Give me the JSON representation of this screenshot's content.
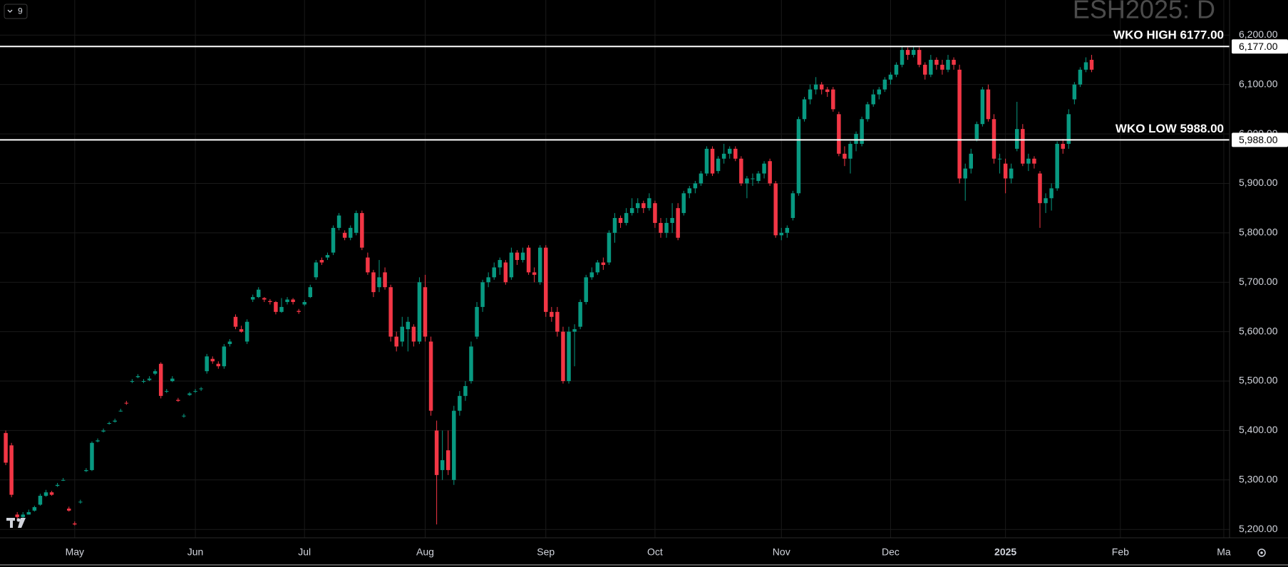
{
  "chart_data": {
    "type": "candlestick",
    "title": "ESH2025: D",
    "indicator_count": "9",
    "up_color": "#089981",
    "down_color": "#f23645",
    "grid": true,
    "ylim": [
      5183,
      6271
    ],
    "yticks": [
      {
        "value": 5200,
        "label": "5,200.00"
      },
      {
        "value": 5300,
        "label": "5,300.00"
      },
      {
        "value": 5400,
        "label": "5,400.00"
      },
      {
        "value": 5500,
        "label": "5,500.00"
      },
      {
        "value": 5600,
        "label": "5,600.00"
      },
      {
        "value": 5700,
        "label": "5,700.00"
      },
      {
        "value": 5800,
        "label": "5,800.00"
      },
      {
        "value": 5900,
        "label": "5,900.00"
      },
      {
        "value": 6000,
        "label": "6,000.00"
      },
      {
        "value": 6100,
        "label": "6,100.00"
      },
      {
        "value": 6200,
        "label": "6,200.00"
      }
    ],
    "xlim": [
      -1,
      213
    ],
    "xticks": [
      {
        "value": 12,
        "label": "May"
      },
      {
        "value": 33,
        "label": "Jun"
      },
      {
        "value": 52,
        "label": "Jul"
      },
      {
        "value": 73,
        "label": "Aug"
      },
      {
        "value": 94,
        "label": "Sep"
      },
      {
        "value": 113,
        "label": "Oct"
      },
      {
        "value": 135,
        "label": "Nov"
      },
      {
        "value": 154,
        "label": "Dec"
      },
      {
        "value": 174,
        "label": "2025"
      },
      {
        "value": 194,
        "label": "Feb"
      },
      {
        "value": 212,
        "label": "Ma"
      }
    ],
    "levels": [
      {
        "text": "WKO HIGH 6177.00",
        "value": 6177,
        "price_label": "6,177.00"
      },
      {
        "text": "WKO LOW 5988.00",
        "value": 5988,
        "price_label": "5,988.00"
      }
    ],
    "ohlc": [
      [
        5395,
        5400,
        5330,
        5335
      ],
      [
        5370,
        5375,
        5265,
        5270
      ],
      [
        5230,
        5235,
        5220,
        5225
      ],
      [
        5225,
        5235,
        5222,
        5230
      ],
      [
        5230,
        5240,
        5230,
        5235
      ],
      [
        5238,
        5248,
        5236,
        5245
      ],
      [
        5250,
        5272,
        5248,
        5268
      ],
      [
        5268,
        5280,
        5266,
        5275
      ],
      [
        5275,
        5278,
        5268,
        5270
      ],
      [
        5288,
        5294,
        5286,
        5290
      ],
      [
        5300,
        5304,
        5298,
        5300
      ],
      [
        5242,
        5246,
        5236,
        5238
      ],
      [
        5212,
        5216,
        5208,
        5210
      ],
      [
        5256,
        5260,
        5252,
        5256
      ],
      [
        5318,
        5324,
        5316,
        5320
      ],
      [
        5320,
        5378,
        5318,
        5375
      ],
      [
        5378,
        5384,
        5376,
        5380
      ],
      [
        5398,
        5404,
        5396,
        5400
      ],
      [
        5414,
        5418,
        5412,
        5415
      ],
      [
        5418,
        5424,
        5416,
        5420
      ],
      [
        5440,
        5444,
        5438,
        5440
      ],
      [
        5456,
        5460,
        5452,
        5455
      ],
      [
        5500,
        5504,
        5496,
        5500
      ],
      [
        5508,
        5514,
        5506,
        5510
      ],
      [
        5500,
        5504,
        5496,
        5500
      ],
      [
        5502,
        5510,
        5500,
        5505
      ],
      [
        5515,
        5524,
        5512,
        5520
      ],
      [
        5535,
        5538,
        5465,
        5470
      ],
      [
        5480,
        5484,
        5476,
        5480
      ],
      [
        5500,
        5510,
        5498,
        5505
      ],
      [
        5462,
        5466,
        5458,
        5460
      ],
      [
        5430,
        5434,
        5426,
        5430
      ],
      [
        5472,
        5478,
        5470,
        5475
      ],
      [
        5480,
        5484,
        5476,
        5480
      ],
      [
        5484,
        5488,
        5480,
        5485
      ],
      [
        5520,
        5555,
        5515,
        5550
      ],
      [
        5545,
        5550,
        5535,
        5540
      ],
      [
        5535,
        5540,
        5525,
        5530
      ],
      [
        5530,
        5575,
        5525,
        5570
      ],
      [
        5575,
        5585,
        5570,
        5580
      ],
      [
        5630,
        5635,
        5605,
        5610
      ],
      [
        5605,
        5612,
        5598,
        5600
      ],
      [
        5580,
        5625,
        5575,
        5620
      ],
      [
        5665,
        5675,
        5660,
        5670
      ],
      [
        5670,
        5690,
        5668,
        5685
      ],
      [
        5668,
        5670,
        5660,
        5665
      ],
      [
        5662,
        5666,
        5655,
        5660
      ],
      [
        5660,
        5662,
        5635,
        5640
      ],
      [
        5640,
        5668,
        5638,
        5650
      ],
      [
        5660,
        5670,
        5655,
        5665
      ],
      [
        5665,
        5668,
        5655,
        5660
      ],
      [
        5642,
        5646,
        5636,
        5640
      ],
      [
        5655,
        5664,
        5652,
        5660
      ],
      [
        5670,
        5695,
        5668,
        5690
      ],
      [
        5710,
        5745,
        5705,
        5740
      ],
      [
        5745,
        5750,
        5735,
        5740
      ],
      [
        5750,
        5760,
        5745,
        5755
      ],
      [
        5760,
        5815,
        5755,
        5810
      ],
      [
        5810,
        5840,
        5805,
        5835
      ],
      [
        5800,
        5805,
        5785,
        5790
      ],
      [
        5790,
        5815,
        5785,
        5810
      ],
      [
        5800,
        5845,
        5795,
        5840
      ],
      [
        5840,
        5845,
        5765,
        5770
      ],
      [
        5750,
        5760,
        5715,
        5720
      ],
      [
        5720,
        5725,
        5670,
        5680
      ],
      [
        5690,
        5745,
        5680,
        5710
      ],
      [
        5720,
        5730,
        5685,
        5690
      ],
      [
        5690,
        5695,
        5580,
        5590
      ],
      [
        5590,
        5600,
        5560,
        5570
      ],
      [
        5580,
        5630,
        5570,
        5610
      ],
      [
        5605,
        5630,
        5560,
        5620
      ],
      [
        5610,
        5615,
        5570,
        5580
      ],
      [
        5580,
        5710,
        5575,
        5700
      ],
      [
        5690,
        5715,
        5580,
        5590
      ],
      [
        5580,
        5590,
        5430,
        5440
      ],
      [
        5400,
        5420,
        5210,
        5310
      ],
      [
        5320,
        5400,
        5300,
        5340
      ],
      [
        5360,
        5400,
        5310,
        5320
      ],
      [
        5300,
        5450,
        5290,
        5440
      ],
      [
        5440,
        5480,
        5430,
        5470
      ],
      [
        5470,
        5500,
        5460,
        5490
      ],
      [
        5500,
        5580,
        5495,
        5570
      ],
      [
        5590,
        5660,
        5585,
        5650
      ],
      [
        5650,
        5705,
        5640,
        5700
      ],
      [
        5700,
        5720,
        5690,
        5710
      ],
      [
        5710,
        5740,
        5705,
        5730
      ],
      [
        5730,
        5750,
        5715,
        5745
      ],
      [
        5740,
        5745,
        5695,
        5700
      ],
      [
        5710,
        5770,
        5705,
        5760
      ],
      [
        5760,
        5765,
        5735,
        5745
      ],
      [
        5745,
        5770,
        5740,
        5760
      ],
      [
        5770,
        5775,
        5715,
        5720
      ],
      [
        5720,
        5730,
        5700,
        5715
      ],
      [
        5700,
        5775,
        5695,
        5770
      ],
      [
        5770,
        5775,
        5630,
        5640
      ],
      [
        5640,
        5650,
        5620,
        5630
      ],
      [
        5640,
        5650,
        5590,
        5600
      ],
      [
        5600,
        5610,
        5495,
        5500
      ],
      [
        5500,
        5610,
        5495,
        5600
      ],
      [
        5600,
        5615,
        5530,
        5605
      ],
      [
        5610,
        5665,
        5605,
        5660
      ],
      [
        5660,
        5715,
        5655,
        5710
      ],
      [
        5710,
        5730,
        5705,
        5720
      ],
      [
        5720,
        5745,
        5715,
        5740
      ],
      [
        5740,
        5750,
        5725,
        5735
      ],
      [
        5740,
        5805,
        5735,
        5800
      ],
      [
        5800,
        5840,
        5780,
        5830
      ],
      [
        5830,
        5835,
        5810,
        5820
      ],
      [
        5820,
        5850,
        5815,
        5840
      ],
      [
        5840,
        5870,
        5835,
        5850
      ],
      [
        5850,
        5870,
        5840,
        5860
      ],
      [
        5860,
        5865,
        5840,
        5850
      ],
      [
        5850,
        5880,
        5845,
        5870
      ],
      [
        5860,
        5865,
        5810,
        5820
      ],
      [
        5820,
        5830,
        5790,
        5800
      ],
      [
        5800,
        5830,
        5790,
        5820
      ],
      [
        5820,
        5860,
        5800,
        5830
      ],
      [
        5850,
        5860,
        5785,
        5790
      ],
      [
        5840,
        5885,
        5835,
        5880
      ],
      [
        5880,
        5895,
        5870,
        5890
      ],
      [
        5890,
        5905,
        5880,
        5900
      ],
      [
        5900,
        5925,
        5895,
        5920
      ],
      [
        5920,
        5975,
        5915,
        5970
      ],
      [
        5970,
        5975,
        5915,
        5920
      ],
      [
        5925,
        5955,
        5920,
        5950
      ],
      [
        5950,
        5980,
        5940,
        5960
      ],
      [
        5960,
        5975,
        5950,
        5970
      ],
      [
        5970,
        5975,
        5945,
        5950
      ],
      [
        5950,
        5955,
        5895,
        5900
      ],
      [
        5900,
        5915,
        5870,
        5910
      ],
      [
        5910,
        5920,
        5895,
        5910
      ],
      [
        5905,
        5925,
        5900,
        5920
      ],
      [
        5920,
        5945,
        5910,
        5940
      ],
      [
        5945,
        5950,
        5895,
        5900
      ],
      [
        5900,
        5905,
        5790,
        5795
      ],
      [
        5795,
        5810,
        5785,
        5800
      ],
      [
        5800,
        5815,
        5790,
        5810
      ],
      [
        5830,
        5885,
        5825,
        5880
      ],
      [
        5880,
        6035,
        5875,
        6030
      ],
      [
        6030,
        6075,
        6025,
        6070
      ],
      [
        6070,
        6100,
        6060,
        6090
      ],
      [
        6090,
        6115,
        6080,
        6100
      ],
      [
        6100,
        6105,
        6080,
        6090
      ],
      [
        6090,
        6095,
        6075,
        6085
      ],
      [
        6090,
        6095,
        6045,
        6050
      ],
      [
        6040,
        6045,
        5955,
        5960
      ],
      [
        5960,
        5975,
        5935,
        5950
      ],
      [
        5950,
        5985,
        5920,
        5980
      ],
      [
        5980,
        6005,
        5965,
        6000
      ],
      [
        5980,
        6035,
        5975,
        6030
      ],
      [
        6030,
        6065,
        6025,
        6060
      ],
      [
        6060,
        6090,
        6055,
        6080
      ],
      [
        6080,
        6095,
        6070,
        6090
      ],
      [
        6090,
        6115,
        6085,
        6110
      ],
      [
        6110,
        6125,
        6100,
        6120
      ],
      [
        6120,
        6145,
        6115,
        6140
      ],
      [
        6140,
        6177,
        6135,
        6170
      ],
      [
        6170,
        6175,
        6150,
        6160
      ],
      [
        6160,
        6177,
        6155,
        6170
      ],
      [
        6170,
        6175,
        6135,
        6140
      ],
      [
        6140,
        6145,
        6110,
        6120
      ],
      [
        6120,
        6160,
        6115,
        6150
      ],
      [
        6150,
        6155,
        6130,
        6140
      ],
      [
        6140,
        6150,
        6120,
        6130
      ],
      [
        6130,
        6160,
        6125,
        6150
      ],
      [
        6150,
        6155,
        6130,
        6140
      ],
      [
        6130,
        6140,
        5900,
        5910
      ],
      [
        5910,
        5940,
        5865,
        5930
      ],
      [
        5930,
        5970,
        5920,
        5960
      ],
      [
        5990,
        6025,
        5985,
        6020
      ],
      [
        6020,
        6095,
        6015,
        6090
      ],
      [
        6090,
        6100,
        6025,
        6030
      ],
      [
        6030,
        6040,
        5940,
        5950
      ],
      [
        5950,
        5960,
        5920,
        5950
      ],
      [
        5940,
        5950,
        5880,
        5910
      ],
      [
        5910,
        5940,
        5900,
        5930
      ],
      [
        5970,
        6065,
        5965,
        6010
      ],
      [
        6010,
        6020,
        5935,
        5940
      ],
      [
        5940,
        5960,
        5925,
        5950
      ],
      [
        5950,
        5955,
        5930,
        5940
      ],
      [
        5920,
        5925,
        5810,
        5860
      ],
      [
        5860,
        5880,
        5840,
        5870
      ],
      [
        5870,
        5900,
        5845,
        5890
      ],
      [
        5890,
        5985,
        5885,
        5980
      ],
      [
        5980,
        5990,
        5960,
        5970
      ],
      [
        5980,
        6050,
        5970,
        6040
      ],
      [
        6070,
        6105,
        6060,
        6100
      ],
      [
        6100,
        6135,
        6095,
        6130
      ],
      [
        6130,
        6155,
        6125,
        6145
      ],
      [
        6150,
        6160,
        6125,
        6130
      ]
    ]
  }
}
